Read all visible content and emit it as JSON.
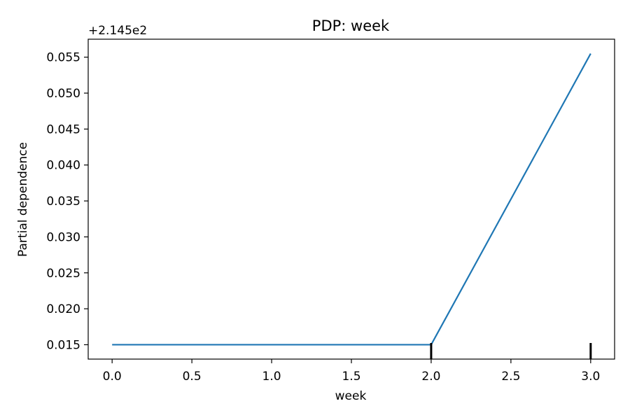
{
  "chart_data": {
    "type": "line",
    "title": "PDP: week",
    "xlabel": "week",
    "ylabel": "Partial dependence",
    "offset_label": "+2.145e2",
    "xlim": [
      -0.15,
      3.15
    ],
    "ylim": [
      0.013,
      0.0575
    ],
    "x_ticks": [
      0.0,
      0.5,
      1.0,
      1.5,
      2.0,
      2.5,
      3.0
    ],
    "x_tick_labels": [
      "0.0",
      "0.5",
      "1.0",
      "1.5",
      "2.0",
      "2.5",
      "3.0"
    ],
    "y_ticks": [
      0.015,
      0.02,
      0.025,
      0.03,
      0.035,
      0.04,
      0.045,
      0.05,
      0.055
    ],
    "y_tick_labels": [
      "0.015",
      "0.020",
      "0.025",
      "0.030",
      "0.035",
      "0.040",
      "0.045",
      "0.050",
      "0.055"
    ],
    "series": [
      {
        "x": [
          0.0,
          1.0,
          2.0,
          3.0
        ],
        "y": [
          0.015,
          0.015,
          0.015,
          0.0555
        ],
        "color": "#1f77b4"
      }
    ],
    "rug": {
      "x": [
        2.0,
        3.0
      ],
      "color": "#000000"
    },
    "grid": false,
    "legend": "none"
  }
}
